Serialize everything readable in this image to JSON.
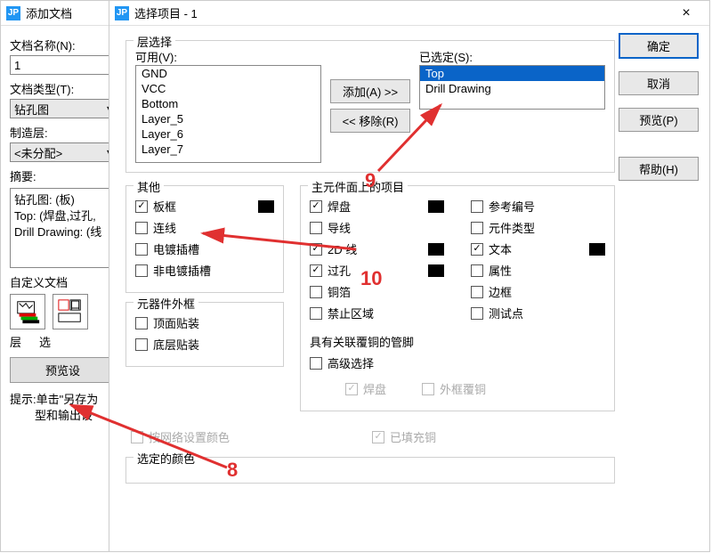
{
  "win1": {
    "title": "添加文档",
    "name_label": "文档名称(N):",
    "name_value": "1",
    "type_label": "文档类型(T):",
    "type_value": "钻孔图",
    "mfg_label": "制造层:",
    "mfg_value": "<未分配>",
    "summary_label": "摘要:",
    "summary_l1": "钻孔图: (板)",
    "summary_l2": "Top: (焊盘,过孔,",
    "summary_l3": "Drill Drawing: (线",
    "custom_label": "自定义文档",
    "btn_layer": "层",
    "btn_opt": "选",
    "preview_btn": "预览设",
    "tip_l1": "提示:单击\"另存为",
    "tip_l2": "型和输出设"
  },
  "win2": {
    "title": "选择项目 - 1",
    "layer_section": "层选择",
    "avail_label": "可用(V):",
    "avail_items": [
      "GND",
      "VCC",
      "Bottom",
      "Layer_5",
      "Layer_6",
      "Layer_7"
    ],
    "sel_label": "已选定(S):",
    "sel_items": [
      "Top",
      "Drill Drawing"
    ],
    "add_btn": "添加(A) >>",
    "rem_btn": "<< 移除(R)",
    "other_section": "其他",
    "other_cb": [
      "板框",
      "连线",
      "电镀插槽",
      "非电镀插槽"
    ],
    "compout_section": "元器件外框",
    "compout_cb": [
      "顶面贴装",
      "底层贴装"
    ],
    "topitems_section": "主元件面上的项目",
    "col1": [
      "焊盘",
      "导线",
      "2D 线",
      "过孔",
      "铜箔",
      "禁止区域"
    ],
    "col2": [
      "参考编号",
      "元件类型",
      "文本",
      "属性",
      "边框",
      "测试点"
    ],
    "assoc_label": "具有关联覆铜的管脚",
    "assoc_cb": "高级选择",
    "assoc_sub1": "焊盘",
    "assoc_sub2": "外框覆铜",
    "net_cb": "按网络设置颜色",
    "filled_cb": "已填充铜",
    "selcolor_section": "选定的颜色",
    "ok_btn": "确定",
    "cancel_btn": "取消",
    "preview_btn": "预览(P)",
    "help_btn": "帮助(H)"
  },
  "ann": {
    "n8": "8",
    "n9": "9",
    "n10": "10"
  },
  "col1_checked": [
    true,
    false,
    true,
    true,
    false,
    false
  ],
  "col1_swatch": [
    true,
    false,
    true,
    true,
    false,
    false
  ],
  "col2_checked": [
    false,
    false,
    true,
    false,
    false,
    false
  ],
  "col2_swatch": [
    false,
    false,
    true,
    false,
    false,
    false
  ]
}
